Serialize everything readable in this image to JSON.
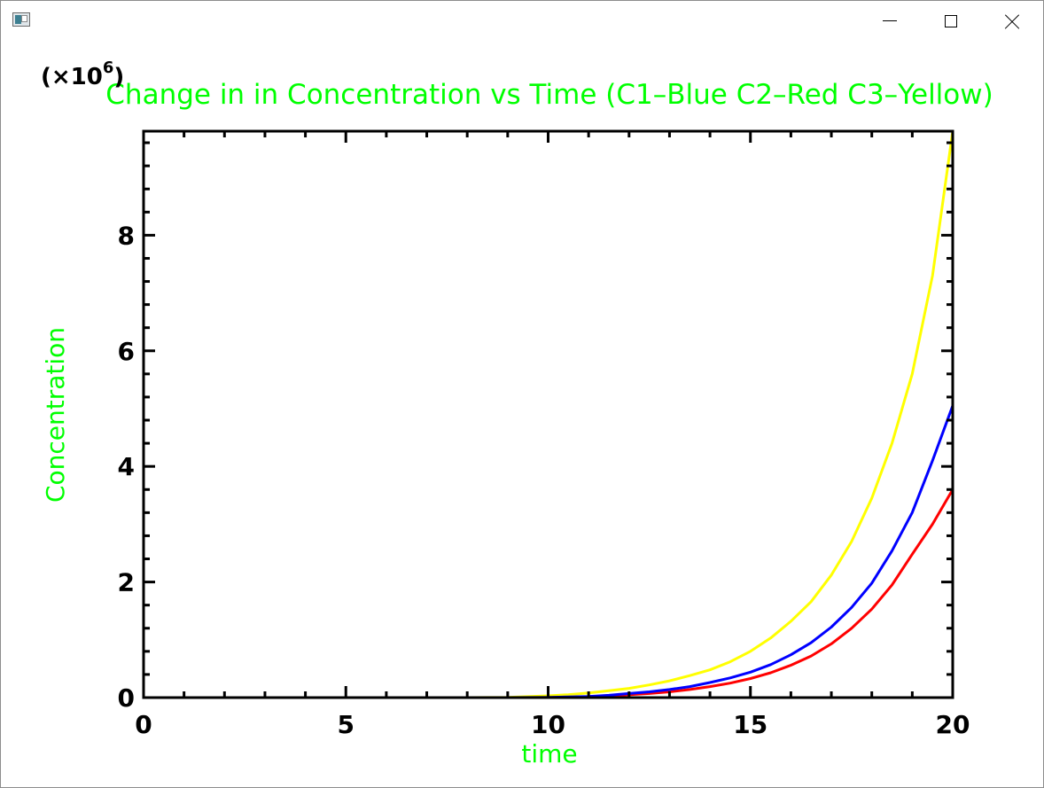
{
  "window": {
    "icon": "app-window-icon",
    "controls": {
      "minimize": "minimize-icon",
      "maximize": "maximize-icon",
      "close": "close-icon"
    }
  },
  "colors": {
    "title": "#00ff00",
    "axis_labels": "#00ff00",
    "axes": "#000000",
    "c1": "#0000ff",
    "c2": "#ff0000",
    "c3": "#ffff00"
  },
  "chart_data": {
    "type": "line",
    "title": "Change in in Concentration vs Time (C1–Blue C2–Red C3–Yellow)",
    "xlabel": "time",
    "ylabel": "Concentration",
    "y_multiplier": "(×10",
    "y_multiplier_exp": "6",
    "y_multiplier_close": ")",
    "xlim": [
      0,
      20
    ],
    "ylim": [
      0,
      9.8
    ],
    "x_ticks": [
      "0",
      "5",
      "10",
      "15",
      "20"
    ],
    "y_ticks": [
      "0",
      "2",
      "4",
      "6",
      "8"
    ],
    "x_tick_values": [
      0,
      5,
      10,
      15,
      20
    ],
    "y_tick_values": [
      0,
      2,
      4,
      6,
      8
    ],
    "grid": false,
    "legend": "none",
    "x": [
      0,
      1,
      2,
      3,
      4,
      5,
      6,
      7,
      8,
      9,
      10,
      10.5,
      11,
      11.5,
      12,
      12.5,
      13,
      13.5,
      14,
      14.5,
      15,
      15.5,
      16,
      16.5,
      17,
      17.5,
      18,
      18.5,
      19,
      19.5,
      20
    ],
    "series": [
      {
        "color": "#ffff00",
        "values": [
          0,
          0,
          0,
          0,
          0,
          0,
          0,
          0,
          0,
          0.005,
          0.03,
          0.05,
          0.08,
          0.12,
          0.16,
          0.22,
          0.29,
          0.38,
          0.48,
          0.62,
          0.8,
          1.03,
          1.32,
          1.66,
          2.12,
          2.7,
          3.45,
          4.4,
          5.6,
          7.3,
          9.8
        ]
      },
      {
        "color": "#ff0000",
        "values": [
          0,
          0,
          0,
          0,
          0,
          0,
          0,
          0,
          0,
          0,
          0,
          0.005,
          0.015,
          0.03,
          0.05,
          0.07,
          0.1,
          0.14,
          0.19,
          0.25,
          0.33,
          0.43,
          0.56,
          0.72,
          0.93,
          1.2,
          1.53,
          1.95,
          2.48,
          3.0,
          3.6
        ]
      },
      {
        "color": "#0000ff",
        "values": [
          0,
          0,
          0,
          0,
          0,
          0,
          0,
          0,
          0,
          0,
          0.005,
          0.01,
          0.02,
          0.04,
          0.07,
          0.1,
          0.14,
          0.19,
          0.26,
          0.34,
          0.44,
          0.57,
          0.74,
          0.95,
          1.22,
          1.56,
          1.98,
          2.54,
          3.2,
          4.1,
          5.05
        ]
      }
    ]
  }
}
